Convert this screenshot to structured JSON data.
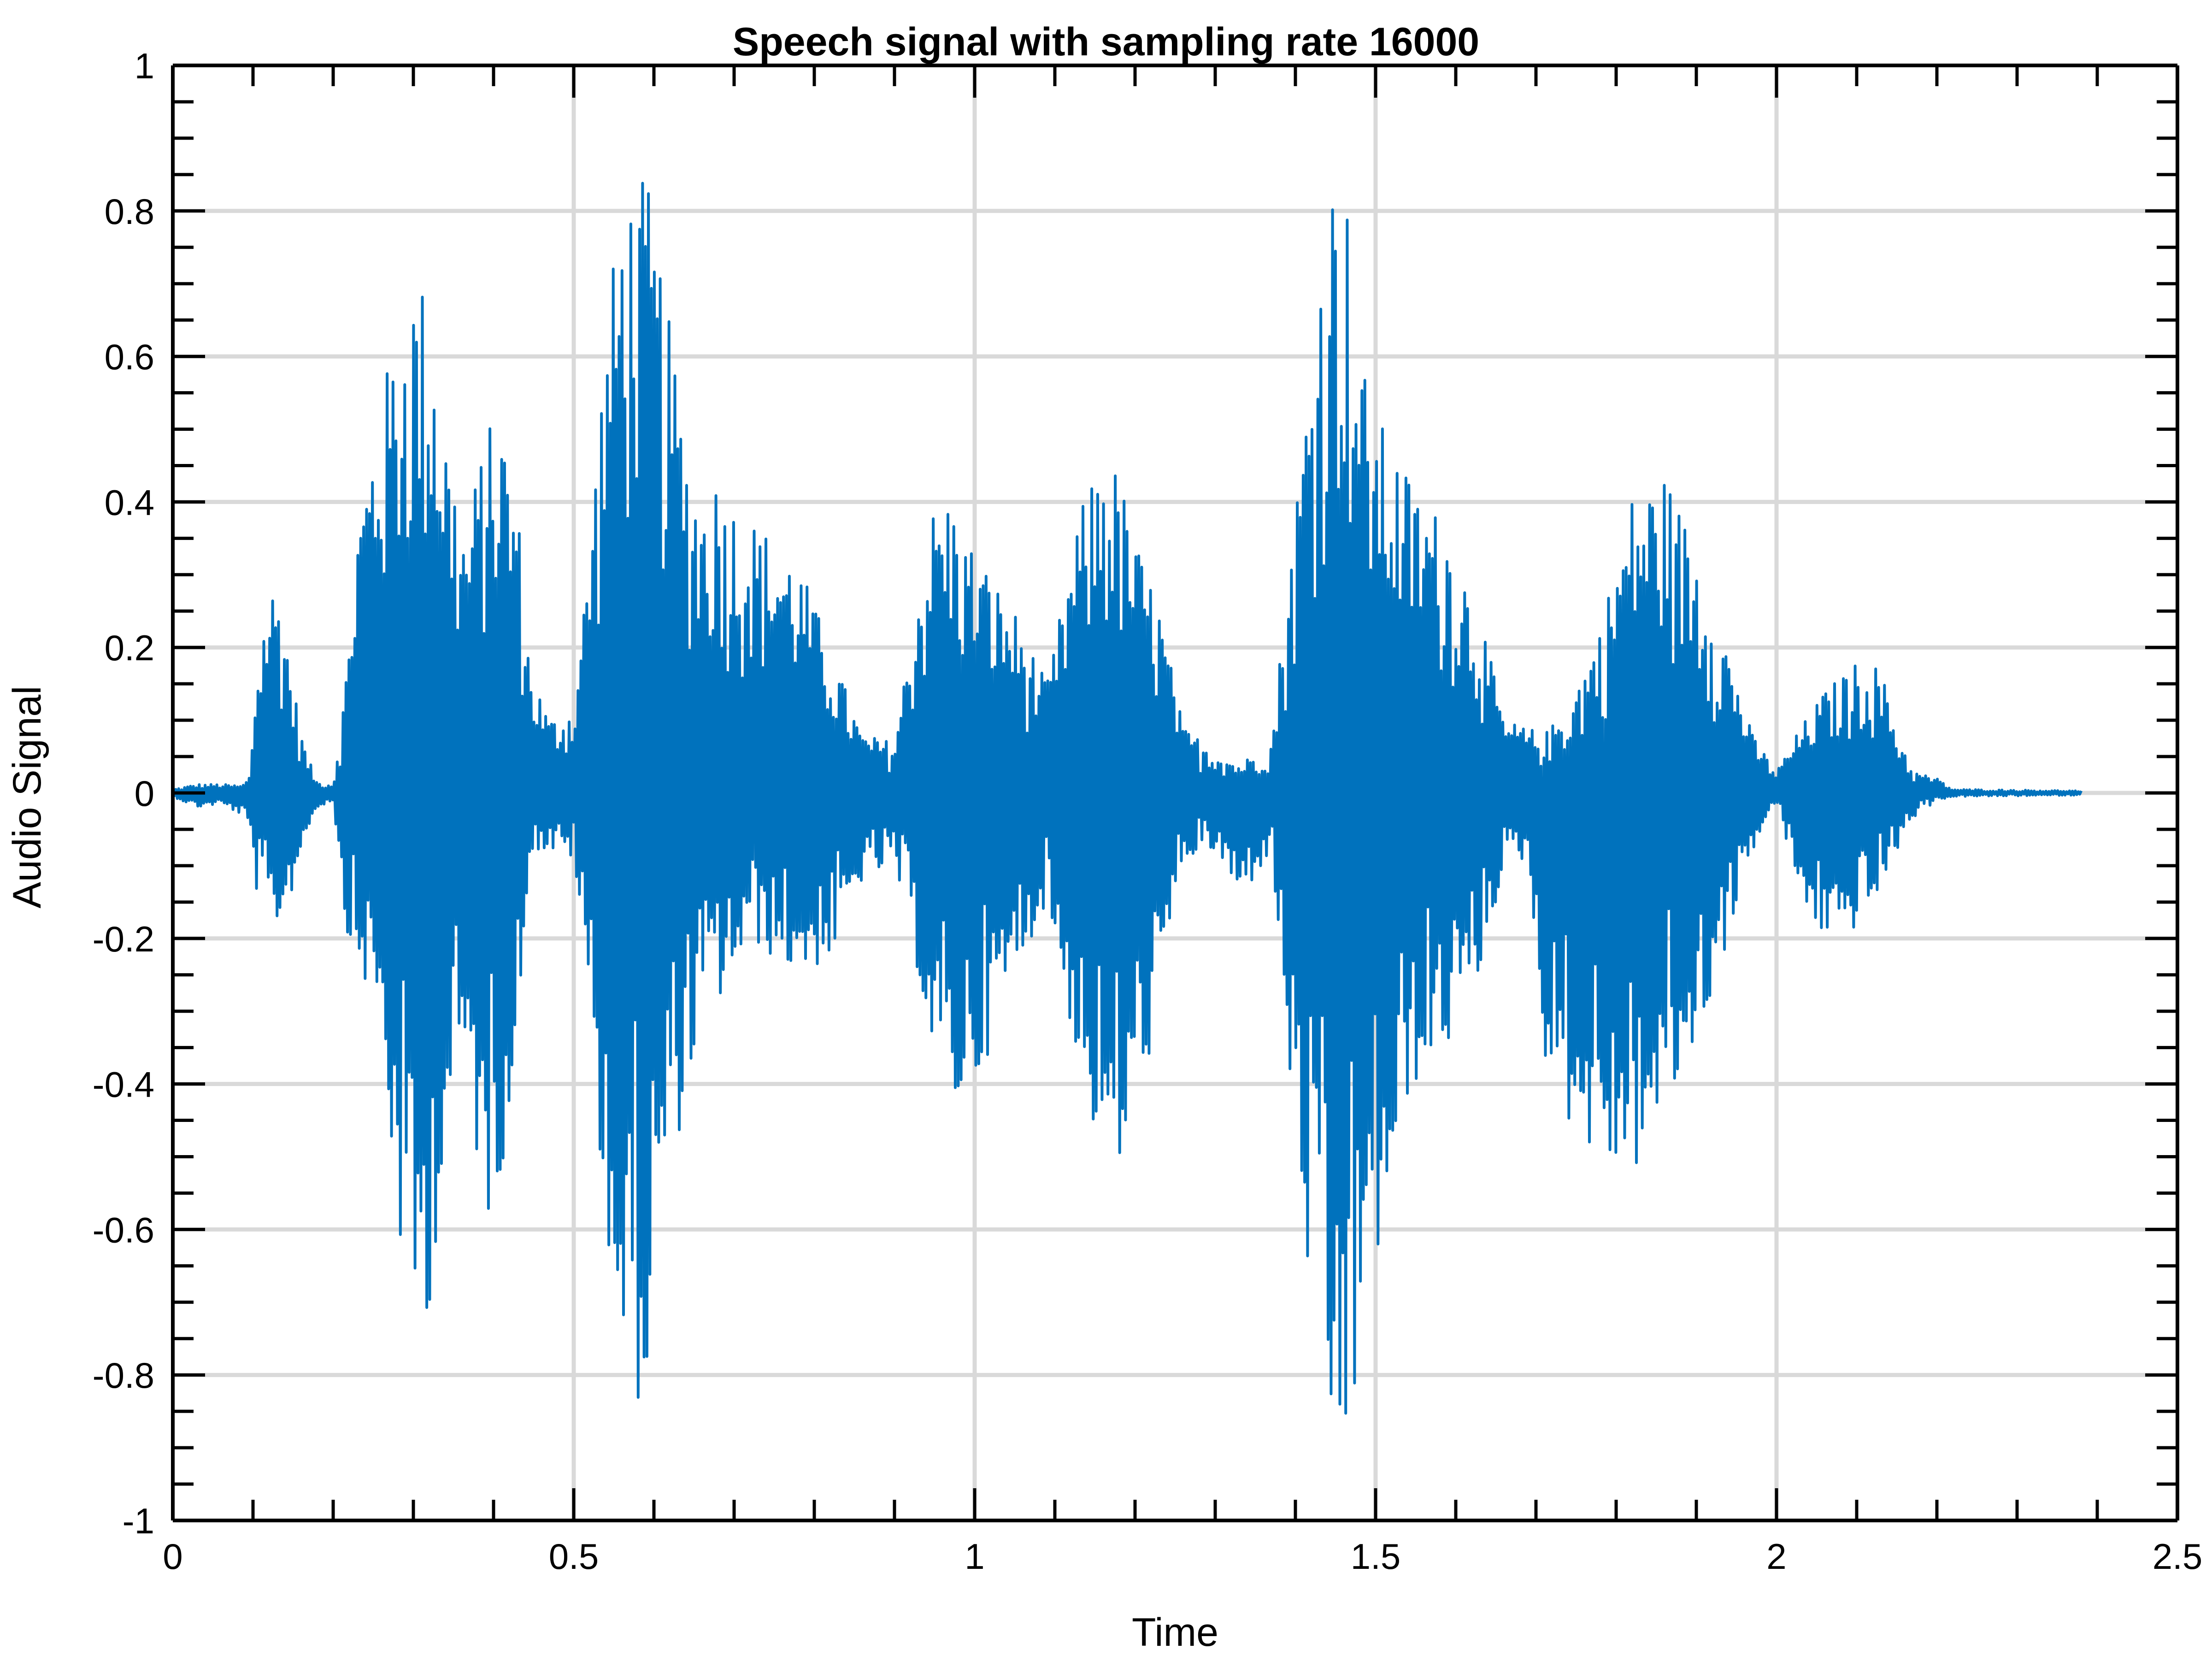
{
  "chart_data": {
    "type": "line",
    "title": "Speech signal with sampling rate 16000",
    "xlabel": "Time",
    "ylabel": "Audio Signal",
    "xlim": [
      0,
      2.5
    ],
    "ylim": [
      -1,
      1
    ],
    "xticks": [
      "0",
      "0.5",
      "1",
      "1.5",
      "2",
      "2.5"
    ],
    "yticks": [
      "1",
      "0.8",
      "0.6",
      "0.4",
      "0.2",
      "0",
      "-0.2",
      "-0.4",
      "-0.6",
      "-0.8",
      "-1"
    ],
    "grid": true,
    "line_color": "#0072BD",
    "series": [
      {
        "envelope": {
          "x": [
            0.0,
            0.03,
            0.06,
            0.085,
            0.095,
            0.105,
            0.12,
            0.135,
            0.15,
            0.165,
            0.18,
            0.2,
            0.215,
            0.23,
            0.255,
            0.285,
            0.3,
            0.315,
            0.325,
            0.345,
            0.365,
            0.39,
            0.41,
            0.43,
            0.445,
            0.47,
            0.5,
            0.52,
            0.54,
            0.56,
            0.59,
            0.61,
            0.64,
            0.66,
            0.68,
            0.7,
            0.72,
            0.74,
            0.78,
            0.82,
            0.86,
            0.9,
            0.93,
            0.95,
            0.97,
            0.99,
            1.0,
            1.02,
            1.05,
            1.09,
            1.13,
            1.16,
            1.18,
            1.2,
            1.23,
            1.26,
            1.3,
            1.33,
            1.37,
            1.4,
            1.42,
            1.44,
            1.46,
            1.48,
            1.51,
            1.55,
            1.59,
            1.63,
            1.66,
            1.69,
            1.71,
            1.74,
            1.78,
            1.82,
            1.86,
            1.9,
            1.94,
            1.97,
            2.0,
            2.03,
            2.06,
            2.09,
            2.11,
            2.13,
            2.15,
            2.17,
            2.2,
            2.22,
            2.38
          ],
          "upper": [
            0.005,
            0.012,
            0.012,
            0.01,
            0.02,
            0.18,
            0.29,
            0.28,
            0.15,
            0.06,
            0.015,
            0.012,
            0.15,
            0.38,
            0.53,
            0.66,
            0.71,
            0.7,
            0.65,
            0.47,
            0.36,
            0.5,
            0.52,
            0.4,
            0.18,
            0.1,
            0.12,
            0.35,
            0.65,
            0.82,
            0.85,
            0.72,
            0.48,
            0.41,
            0.44,
            0.4,
            0.38,
            0.36,
            0.32,
            0.2,
            0.08,
            0.07,
            0.29,
            0.4,
            0.41,
            0.35,
            0.34,
            0.3,
            0.25,
            0.15,
            0.38,
            0.48,
            0.44,
            0.35,
            0.26,
            0.09,
            0.06,
            0.04,
            0.07,
            0.4,
            0.62,
            0.84,
            0.88,
            0.6,
            0.5,
            0.42,
            0.37,
            0.25,
            0.1,
            0.09,
            0.08,
            0.12,
            0.23,
            0.41,
            0.44,
            0.34,
            0.2,
            0.08,
            0.03,
            0.09,
            0.14,
            0.17,
            0.19,
            0.17,
            0.09,
            0.03,
            0.02,
            0.005,
            0.003
          ],
          "lower": [
            -0.005,
            -0.02,
            -0.015,
            -0.03,
            -0.05,
            -0.14,
            -0.18,
            -0.18,
            -0.13,
            -0.06,
            -0.02,
            -0.01,
            -0.18,
            -0.24,
            -0.3,
            -0.65,
            -0.74,
            -0.76,
            -0.65,
            -0.45,
            -0.38,
            -0.6,
            -0.52,
            -0.35,
            -0.08,
            -0.08,
            -0.09,
            -0.3,
            -0.6,
            -0.81,
            -0.85,
            -0.56,
            -0.43,
            -0.3,
            -0.29,
            -0.25,
            -0.2,
            -0.22,
            -0.25,
            -0.23,
            -0.12,
            -0.1,
            -0.25,
            -0.38,
            -0.44,
            -0.42,
            -0.4,
            -0.35,
            -0.25,
            -0.15,
            -0.38,
            -0.52,
            -0.53,
            -0.45,
            -0.3,
            -0.09,
            -0.08,
            -0.15,
            -0.08,
            -0.5,
            -0.72,
            -0.92,
            -0.95,
            -0.8,
            -0.6,
            -0.4,
            -0.35,
            -0.25,
            -0.1,
            -0.09,
            -0.36,
            -0.45,
            -0.52,
            -0.53,
            -0.45,
            -0.35,
            -0.2,
            -0.08,
            -0.01,
            -0.15,
            -0.2,
            -0.2,
            -0.16,
            -0.14,
            -0.08,
            -0.035,
            -0.01,
            -0.005,
            -0.003
          ]
        }
      }
    ]
  }
}
